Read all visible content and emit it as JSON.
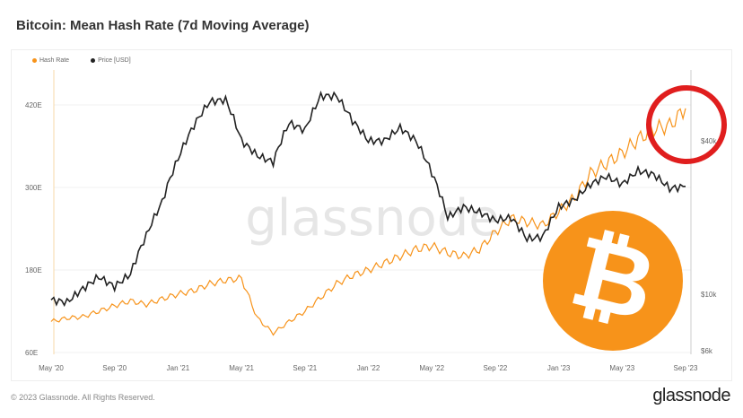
{
  "chart_data": {
    "type": "line",
    "title": "Bitcoin: Mean Hash Rate (7d Moving Average)",
    "x_ticks": [
      "May '20",
      "Sep '20",
      "Jan '21",
      "May '21",
      "Sep '21",
      "Jan '22",
      "May '22",
      "Sep '22",
      "Jan '23",
      "May '23",
      "Sep '23"
    ],
    "x": [
      "2020-05",
      "2020-06",
      "2020-07",
      "2020-08",
      "2020-09",
      "2020-10",
      "2020-11",
      "2020-12",
      "2021-01",
      "2021-02",
      "2021-03",
      "2021-04",
      "2021-05",
      "2021-06",
      "2021-07",
      "2021-08",
      "2021-09",
      "2021-10",
      "2021-11",
      "2021-12",
      "2022-01",
      "2022-02",
      "2022-03",
      "2022-04",
      "2022-05",
      "2022-06",
      "2022-07",
      "2022-08",
      "2022-09",
      "2022-10",
      "2022-11",
      "2022-12",
      "2023-01",
      "2023-02",
      "2023-03",
      "2023-04",
      "2023-05",
      "2023-06",
      "2023-07",
      "2023-08",
      "2023-09"
    ],
    "left_axis": {
      "ticks": [
        "60E",
        "180E",
        "300E",
        "420E"
      ],
      "range": [
        60,
        420
      ]
    },
    "right_axis": {
      "scale": "log",
      "ticks": [
        "$6k",
        "$10k",
        "$40k"
      ],
      "values": [
        6000,
        10000,
        40000
      ]
    },
    "series": [
      {
        "name": "Hash Rate",
        "color": "#f7931a",
        "axis": "left",
        "values": [
          105,
          110,
          112,
          120,
          128,
          135,
          130,
          138,
          145,
          150,
          160,
          165,
          168,
          110,
          88,
          105,
          120,
          140,
          160,
          172,
          180,
          190,
          200,
          210,
          215,
          205,
          200,
          210,
          235,
          255,
          250,
          245,
          265,
          285,
          320,
          335,
          350,
          370,
          385,
          390,
          415
        ]
      },
      {
        "name": "Price [USD]",
        "color": "#222222",
        "axis": "right",
        "values": [
          9500,
          9300,
          10500,
          11700,
          10700,
          12000,
          17000,
          23000,
          34000,
          46000,
          57000,
          58000,
          40000,
          35000,
          33000,
          47000,
          44000,
          60000,
          60000,
          48000,
          40000,
          40000,
          45000,
          40000,
          30000,
          20000,
          22000,
          21000,
          19500,
          20000,
          16500,
          16800,
          22000,
          23500,
          27000,
          29000,
          27000,
          30500,
          29500,
          26000,
          26500
        ]
      }
    ],
    "legend_position": "top-left",
    "grid": true
  },
  "watermark": "glassnode",
  "footer": {
    "copyright": "© 2023 Glassnode. All Rights Reserved.",
    "brand": "glassnode"
  },
  "colors": {
    "accent": "#f7931a",
    "annotation": "#e01e1e"
  }
}
